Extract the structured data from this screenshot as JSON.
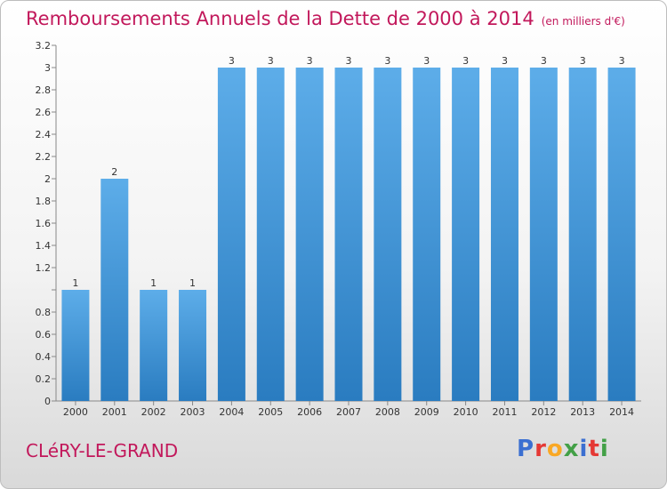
{
  "header": {
    "title": "Remboursements Annuels de la Dette de 2000 à 2014",
    "unit": "(en milliers d'€)"
  },
  "footer": {
    "commune": "CLéRY-LE-GRAND",
    "brand": [
      "P",
      "r",
      "o",
      "x",
      "i",
      "t",
      "i"
    ],
    "brand_colors": [
      "#3b6fd1",
      "#e53935",
      "#f9a825",
      "#43a047",
      "#3b6fd1",
      "#e53935",
      "#43a047"
    ]
  },
  "chart_data": {
    "type": "bar",
    "categories": [
      "2000",
      "2001",
      "2002",
      "2003",
      "2004",
      "2005",
      "2006",
      "2007",
      "2008",
      "2009",
      "2010",
      "2011",
      "2012",
      "2013",
      "2014"
    ],
    "values": [
      1,
      2,
      1,
      1,
      3,
      3,
      3,
      3,
      3,
      3,
      3,
      3,
      3,
      3,
      3
    ],
    "data_labels": [
      "1",
      "2",
      "1",
      "1",
      "3",
      "3",
      "3",
      "3",
      "3",
      "3",
      "3",
      "3",
      "3",
      "3",
      "3"
    ],
    "ylim": [
      0,
      3.2
    ],
    "yticks": [
      0,
      0.2,
      0.4,
      0.6,
      0.8,
      1,
      1.2,
      1.4,
      1.6,
      1.8,
      2,
      2.2,
      2.4,
      2.6,
      2.8,
      3,
      3.2
    ],
    "ytick_labels": [
      "0",
      "0.2",
      "0.4",
      "0.6",
      "0.8",
      "",
      "1.2",
      "1.4",
      "1.6",
      "1.8",
      "2",
      "2.2",
      "2.4",
      "2.6",
      "2.8",
      "3",
      "3.2"
    ],
    "grid": false,
    "bar_color_top": "#5dade9",
    "bar_color_bottom": "#2a7cc0"
  }
}
